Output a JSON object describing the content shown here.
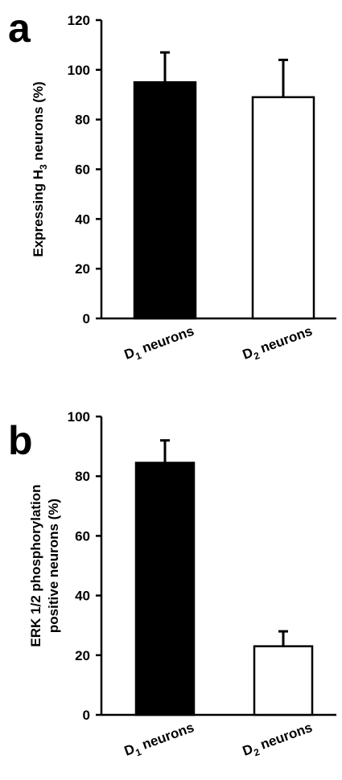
{
  "chart_data": [
    {
      "type": "bar",
      "panel": "a",
      "categories": [
        {
          "main": "D",
          "sub": "1",
          "rest": " neurons"
        },
        {
          "main": "D",
          "sub": "2",
          "rest": " neurons"
        }
      ],
      "values": [
        95,
        89
      ],
      "errors": [
        12,
        15
      ],
      "bar_colors": [
        "#000000",
        "#ffffff"
      ],
      "ylabel": {
        "pre": "Expressing H",
        "sub": "3",
        "post": " neurons (%)"
      },
      "ylim": [
        0,
        120
      ],
      "yticks": [
        0,
        20,
        40,
        60,
        80,
        100,
        120
      ],
      "grid": false
    },
    {
      "type": "bar",
      "panel": "b",
      "categories": [
        {
          "main": "D",
          "sub": "1",
          "rest": " neurons"
        },
        {
          "main": "D",
          "sub": "2",
          "rest": " neurons"
        }
      ],
      "values": [
        84.5,
        23
      ],
      "errors": [
        7.5,
        5
      ],
      "bar_colors": [
        "#000000",
        "#ffffff"
      ],
      "ylabel_lines": [
        "ERK 1/2 phosphorylation",
        "positive neurons (%)"
      ],
      "ylim": [
        0,
        100
      ],
      "yticks": [
        0,
        20,
        40,
        60,
        80,
        100
      ],
      "grid": false
    }
  ]
}
